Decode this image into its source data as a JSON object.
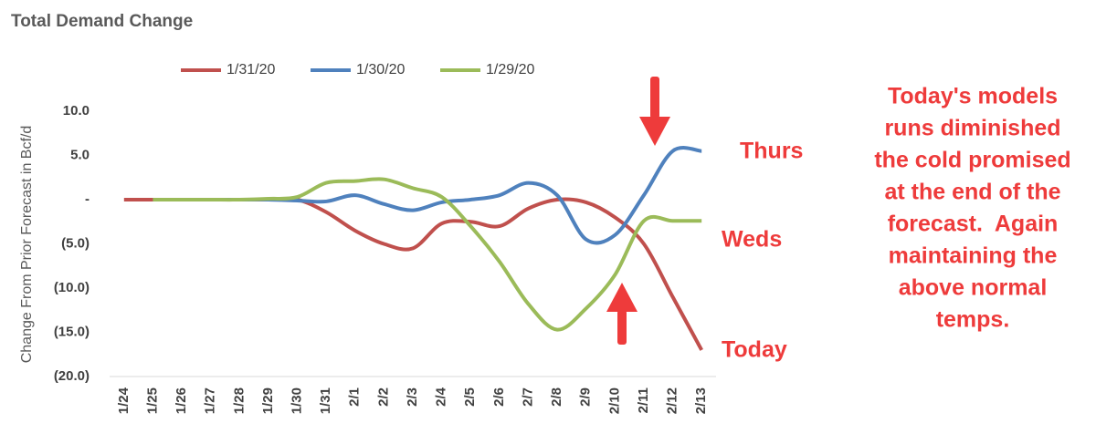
{
  "chart_data": {
    "type": "line",
    "title": "Total Demand Change",
    "y_label": "Change From Prior Forecast in Bcf/d",
    "categories": [
      "1/24",
      "1/25",
      "1/26",
      "1/27",
      "1/28",
      "1/29",
      "1/30",
      "1/31",
      "2/1",
      "2/2",
      "2/3",
      "2/4",
      "2/5",
      "2/6",
      "2/7",
      "2/8",
      "2/9",
      "2/10",
      "2/11",
      "2/12",
      "2/13"
    ],
    "series": [
      {
        "name": "1/31/20",
        "color": "#c0504d",
        "values": [
          0,
          0,
          0,
          0,
          0,
          0,
          0,
          -1.4,
          -3.5,
          -5,
          -5.5,
          -2.7,
          -2.5,
          -3,
          -1,
          0,
          -0.3,
          -2,
          -5,
          -11,
          -17
        ]
      },
      {
        "name": "1/30/20",
        "color": "#4f81bd",
        "values": [
          null,
          0,
          0,
          0,
          0,
          0,
          -0.1,
          -0.2,
          0.5,
          -0.5,
          -1.2,
          -0.3,
          0,
          0.5,
          1.9,
          0.5,
          -4.5,
          -4,
          0.5,
          5.5,
          5.5
        ]
      },
      {
        "name": "1/29/20",
        "color": "#9bbb59",
        "values": [
          null,
          0,
          0,
          0,
          0,
          0.1,
          0.3,
          1.9,
          2.1,
          2.3,
          1.3,
          0.3,
          -3,
          -7,
          -11.8,
          -14.7,
          -12.3,
          -8.5,
          -2.4,
          -2.4,
          -2.4
        ]
      }
    ],
    "ylim": [
      -20,
      10
    ],
    "yticks": [
      {
        "value": 10,
        "label": "10.0"
      },
      {
        "value": 5,
        "label": "5.0"
      },
      {
        "value": 0,
        "label": "-"
      },
      {
        "value": -5,
        "label": "(5.0)"
      },
      {
        "value": -10,
        "label": "(10.0)"
      },
      {
        "value": -15,
        "label": "(15.0)"
      },
      {
        "value": -20,
        "label": "(20.0)"
      }
    ],
    "grid": false,
    "legend": "top",
    "annotations": [
      "Thurs",
      "Weds",
      "Today"
    ],
    "note_lines": [
      "Today's models",
      "runs diminished",
      "the cold promised",
      "at the end of the",
      "forecast.  Again",
      "maintaining the",
      "above normal",
      "temps."
    ]
  }
}
